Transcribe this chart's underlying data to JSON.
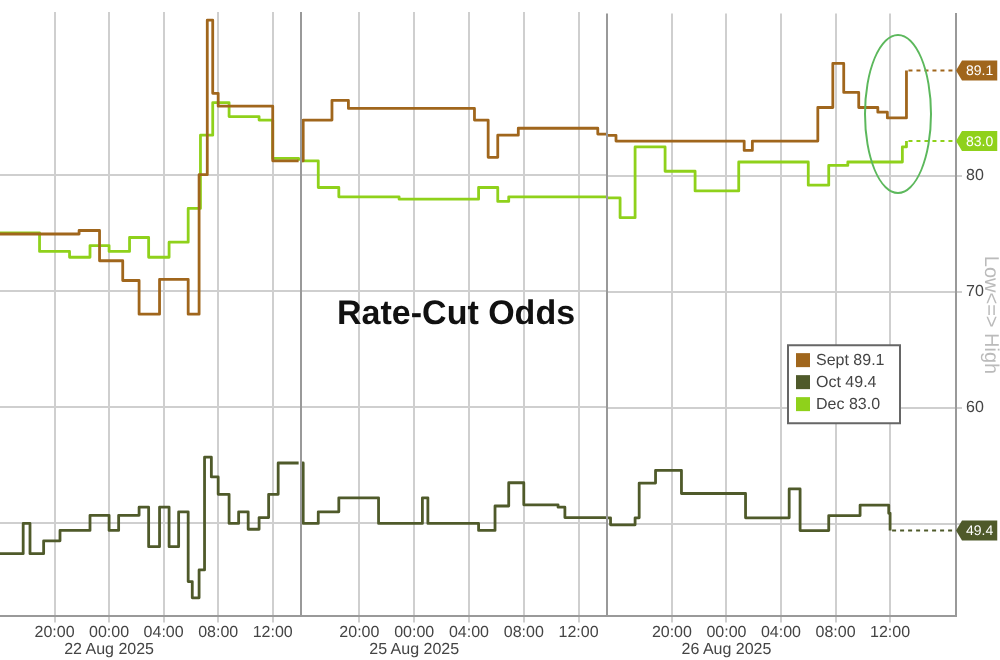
{
  "chart_data": [
    {
      "type": "step",
      "xlim": [
        "2025-08-21T16:00",
        "2025-08-22T14:00"
      ],
      "ylim": [
        42,
        94
      ],
      "yticks": [
        50,
        60,
        70,
        80
      ],
      "tick_labels": "x",
      "grid": true,
      "xticks": [
        {
          "value": "2025-08-21T20:00",
          "label": "20:00"
        },
        {
          "value": "2025-08-22T00:00",
          "label": "00:00\n22 Aug 2025"
        },
        {
          "value": "2025-08-22T04:00",
          "label": "04:00"
        },
        {
          "value": "2025-08-22T08:00",
          "label": "08:00"
        },
        {
          "value": "2025-08-22T12:00",
          "label": "12:00"
        }
      ],
      "series": [
        {
          "color": "#a0661c",
          "x": [
            "2025-08-21T16:00",
            "2025-08-21T21:48",
            "2025-08-21T23:18",
            "2025-08-22T01:00",
            "2025-08-22T02:12",
            "2025-08-22T03:42",
            "2025-08-22T05:48",
            "2025-08-22T06:36",
            "2025-08-22T07:12",
            "2025-08-22T07:36",
            "2025-08-22T08:00",
            "2025-08-22T12:00",
            "2025-08-22T13:54"
          ],
          "values": [
            74.9,
            75.2,
            72.6,
            70.9,
            68,
            71,
            68,
            80,
            93.3,
            87,
            85.9,
            81.2,
            81.2
          ]
        },
        {
          "color": "#4f5a2a",
          "x": [
            "2025-08-21T16:00",
            "2025-08-21T17:30",
            "2025-08-21T17:42",
            "2025-08-21T18:12",
            "2025-08-21T19:12",
            "2025-08-21T20:24",
            "2025-08-21T22:36",
            "2025-08-22T00:00",
            "2025-08-22T00:42",
            "2025-08-22T02:12",
            "2025-08-22T02:54",
            "2025-08-22T03:42",
            "2025-08-22T04:24",
            "2025-08-22T05:06",
            "2025-08-22T05:48",
            "2025-08-22T06:06",
            "2025-08-22T06:36",
            "2025-08-22T07:00",
            "2025-08-22T07:30",
            "2025-08-22T08:00",
            "2025-08-22T08:48",
            "2025-08-22T09:30",
            "2025-08-22T10:12",
            "2025-08-22T11:00",
            "2025-08-22T11:42",
            "2025-08-22T12:24",
            "2025-08-22T13:54"
          ],
          "values": [
            47.4,
            47.4,
            50,
            47.4,
            48.5,
            49.4,
            50.7,
            49.4,
            50.7,
            51.4,
            48,
            51.4,
            48,
            51,
            45,
            43.6,
            46,
            55.7,
            54,
            52.5,
            50,
            51,
            49.5,
            50.5,
            52.5,
            55.2,
            55.2
          ]
        },
        {
          "color": "#8fd11b",
          "x": [
            "2025-08-21T16:00",
            "2025-08-21T18:54",
            "2025-08-21T21:06",
            "2025-08-21T22:36",
            "2025-08-22T00:00",
            "2025-08-22T01:30",
            "2025-08-22T02:54",
            "2025-08-22T04:24",
            "2025-08-22T05:48",
            "2025-08-22T06:42",
            "2025-08-22T07:36",
            "2025-08-22T08:48",
            "2025-08-22T11:00",
            "2025-08-22T12:00",
            "2025-08-22T13:54"
          ],
          "values": [
            75,
            73.4,
            72.9,
            73.9,
            73.4,
            74.6,
            72.9,
            74.2,
            77.1,
            83.4,
            86.2,
            85,
            84.7,
            81.4,
            81.2
          ]
        }
      ]
    },
    {
      "type": "step",
      "title": "Rate-Cut Odds",
      "xlim": [
        "2025-08-24T15:40",
        "2025-08-25T14:00"
      ],
      "ylim": [
        42,
        94
      ],
      "yticks": [
        50,
        60,
        70,
        80
      ],
      "tick_labels": "x",
      "grid": true,
      "xticks": [
        {
          "value": "2025-08-24T20:00",
          "label": "20:00"
        },
        {
          "value": "2025-08-25T00:00",
          "label": "00:00\n25 Aug 2025"
        },
        {
          "value": "2025-08-25T04:00",
          "label": "04:00"
        },
        {
          "value": "2025-08-25T08:00",
          "label": "08:00"
        },
        {
          "value": "2025-08-25T12:00",
          "label": "12:00"
        }
      ],
      "series": [
        {
          "color": "#a0661c",
          "x": [
            "2025-08-24T15:40",
            "2025-08-24T15:54",
            "2025-08-24T18:00",
            "2025-08-24T19:12",
            "2025-08-25T03:12",
            "2025-08-25T04:24",
            "2025-08-25T05:24",
            "2025-08-25T06:06",
            "2025-08-25T07:36",
            "2025-08-25T11:12",
            "2025-08-25T13:24",
            "2025-08-25T14:00"
          ],
          "values": [
            81.2,
            84.7,
            86.4,
            85.7,
            85.7,
            84.7,
            81.5,
            83.4,
            84,
            84,
            83.5,
            83.5
          ]
        },
        {
          "color": "#4f5a2a",
          "x": [
            "2025-08-24T15:40",
            "2025-08-24T15:54",
            "2025-08-24T17:00",
            "2025-08-24T18:30",
            "2025-08-24T20:42",
            "2025-08-24T21:24",
            "2025-08-25T00:18",
            "2025-08-25T00:36",
            "2025-08-25T01:00",
            "2025-08-25T04:42",
            "2025-08-25T05:54",
            "2025-08-25T06:54",
            "2025-08-25T08:00",
            "2025-08-25T10:30",
            "2025-08-25T11:00",
            "2025-08-25T14:00"
          ],
          "values": [
            55.2,
            50,
            51,
            52.2,
            52.2,
            50,
            50,
            52.2,
            50,
            49.4,
            51.5,
            53.5,
            51.6,
            51.4,
            50.5,
            50.5
          ]
        },
        {
          "color": "#8fd11b",
          "x": [
            "2025-08-24T15:40",
            "2025-08-24T17:00",
            "2025-08-24T18:30",
            "2025-08-24T22:54",
            "2025-08-25T03:12",
            "2025-08-25T04:42",
            "2025-08-25T06:06",
            "2025-08-25T06:54",
            "2025-08-25T14:00"
          ],
          "values": [
            81.2,
            78.9,
            78.1,
            77.9,
            77.9,
            78.9,
            77.7,
            78.1,
            78.1
          ]
        }
      ]
    },
    {
      "type": "step",
      "ylabel": "Low<=> High",
      "legend": "right",
      "xlim": [
        "2025-08-25T15:10",
        "2025-08-26T16:50"
      ],
      "ylim": [
        42,
        94
      ],
      "yticks": [
        {
          "value": 50,
          "label": null
        },
        60,
        70,
        80
      ],
      "grid": true,
      "xticks": [
        {
          "value": "2025-08-25T20:00",
          "label": "20:00"
        },
        {
          "value": "2025-08-26T00:00",
          "label": "00:00\n26 Aug 2025"
        },
        {
          "value": "2025-08-26T04:00",
          "label": "04:00"
        },
        {
          "value": "2025-08-26T08:00",
          "label": "08:00"
        },
        {
          "value": "2025-08-26T12:00",
          "label": "12:00"
        }
      ],
      "series": [
        {
          "name": "Sept 89.1",
          "color": "#a0661c",
          "x": [
            "2025-08-25T15:10",
            "2025-08-25T15:54",
            "2025-08-26T00:54",
            "2025-08-26T01:18",
            "2025-08-26T01:54",
            "2025-08-26T06:00",
            "2025-08-26T06:42",
            "2025-08-26T07:48",
            "2025-08-26T08:36",
            "2025-08-26T09:42",
            "2025-08-26T11:06",
            "2025-08-26T11:48",
            "2025-08-26T12:54",
            "2025-08-26T13:12"
          ],
          "values": [
            83.5,
            83,
            83,
            82.2,
            83,
            83,
            85.9,
            89.7,
            87.2,
            85.9,
            85.5,
            85,
            85,
            89.1
          ],
          "value_labels": [
            null,
            null,
            null,
            null,
            null,
            null,
            null,
            null,
            null,
            null,
            null,
            null,
            null,
            "89.1"
          ]
        },
        {
          "name": "Oct 49.4",
          "color": "#4f5a2a",
          "x": [
            "2025-08-25T15:10",
            "2025-08-25T15:30",
            "2025-08-25T17:18",
            "2025-08-25T17:36",
            "2025-08-25T18:48",
            "2025-08-25T20:36",
            "2025-08-25T20:42",
            "2025-08-26T00:12",
            "2025-08-26T01:24",
            "2025-08-26T04:00",
            "2025-08-26T04:36",
            "2025-08-26T05:24",
            "2025-08-26T07:30",
            "2025-08-26T09:48",
            "2025-08-26T11:54",
            "2025-08-26T12:00"
          ],
          "values": [
            50.5,
            49.9,
            50.5,
            53.5,
            54.6,
            54.6,
            52.6,
            52.6,
            50.5,
            50.5,
            53,
            49.4,
            50.7,
            51.6,
            50.9,
            49.4
          ],
          "value_labels": [
            null,
            null,
            null,
            null,
            null,
            null,
            null,
            null,
            null,
            null,
            null,
            null,
            null,
            null,
            null,
            "49.4"
          ]
        },
        {
          "name": "Dec 83.0",
          "color": "#8fd11b",
          "x": [
            "2025-08-25T15:10",
            "2025-08-25T15:54",
            "2025-08-25T16:12",
            "2025-08-25T17:18",
            "2025-08-25T19:30",
            "2025-08-25T21:42",
            "2025-08-26T00:54",
            "2025-08-26T06:00",
            "2025-08-26T07:30",
            "2025-08-26T08:54",
            "2025-08-26T12:54",
            "2025-08-26T13:12"
          ],
          "values": [
            78.1,
            78.1,
            76.4,
            82.5,
            80.4,
            78.7,
            81.2,
            79.2,
            80.9,
            81.2,
            82.5,
            83
          ],
          "value_labels": [
            null,
            null,
            null,
            null,
            null,
            null,
            null,
            null,
            null,
            null,
            null,
            "83.0"
          ]
        }
      ]
    }
  ]
}
